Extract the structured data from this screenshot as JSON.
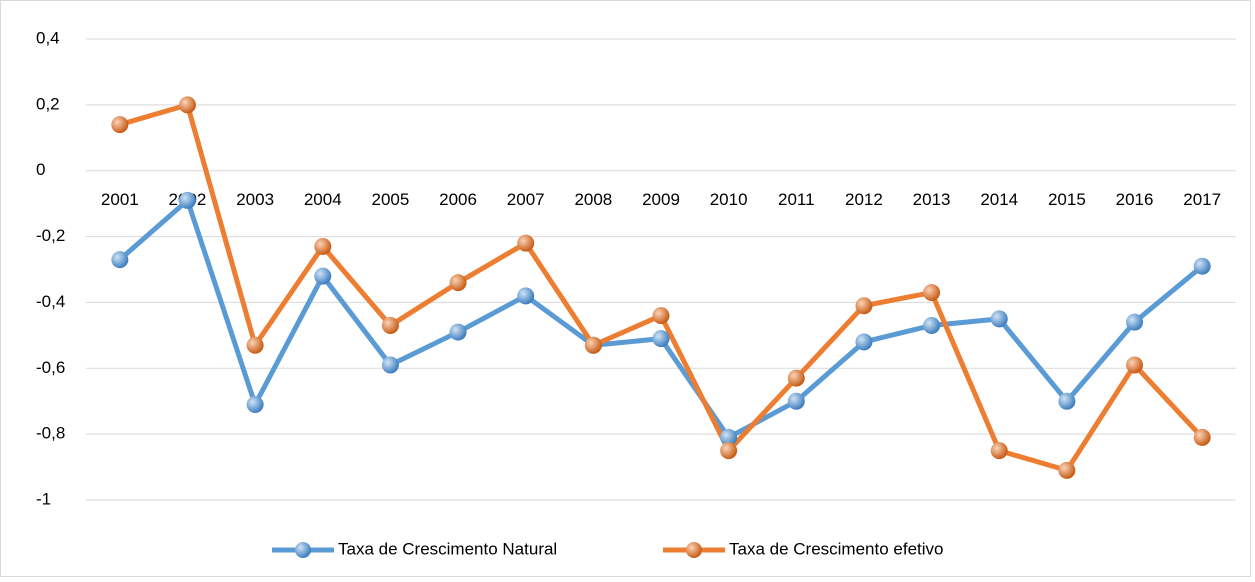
{
  "chart_data": {
    "type": "line",
    "categories": [
      "2001",
      "2002",
      "2003",
      "2004",
      "2005",
      "2006",
      "2007",
      "2008",
      "2009",
      "2010",
      "2011",
      "2012",
      "2013",
      "2014",
      "2015",
      "2016",
      "2017"
    ],
    "series": [
      {
        "name": "Taxa de Crescimento Natural",
        "color": "#5b9bd5",
        "values": [
          -0.27,
          -0.09,
          -0.71,
          -0.32,
          -0.59,
          -0.49,
          -0.38,
          -0.53,
          -0.51,
          -0.81,
          -0.7,
          -0.52,
          -0.47,
          -0.45,
          -0.7,
          -0.46,
          -0.29
        ]
      },
      {
        "name": "Taxa de Crescimento efetivo",
        "color": "#ed7d31",
        "values": [
          0.14,
          0.2,
          -0.53,
          -0.23,
          -0.47,
          -0.34,
          -0.22,
          -0.53,
          -0.44,
          -0.85,
          -0.63,
          -0.41,
          -0.37,
          -0.85,
          -0.91,
          -0.59,
          -0.81
        ]
      }
    ],
    "ylim": [
      -1,
      0.4
    ],
    "yticks": [
      -1,
      {
        "value": -0.8,
        "label": "-0,8"
      },
      {
        "value": -0.6,
        "label": "-0,6"
      },
      {
        "value": -0.4,
        "label": "-0,4"
      },
      {
        "value": -0.2,
        "label": "-0,2"
      },
      0,
      {
        "value": 0.2,
        "label": "0,2"
      },
      {
        "value": 0.4,
        "label": "0,4"
      }
    ],
    "grid": true,
    "legend": "bottom"
  }
}
